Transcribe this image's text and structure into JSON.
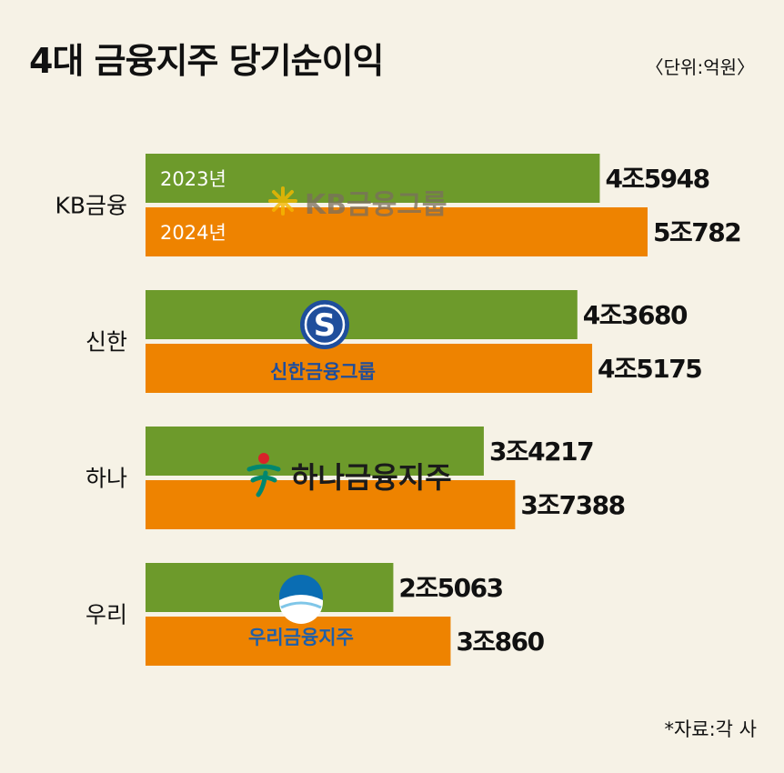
{
  "title": "4대 금융지주 당기순이익",
  "unit": "〈단위:억원〉",
  "source": "*자료:각 사",
  "colors": {
    "series_2023": "#6d9a2b",
    "series_2024": "#ee8300",
    "background": "#f6f2e6"
  },
  "logos": {
    "kb": {
      "text": "KB금융그룹",
      "icon": "kb-star-icon"
    },
    "shinhan": {
      "text": "신한금융그룹",
      "icon": "shinhan-s-emblem-icon"
    },
    "hana": {
      "text": "하나금융지주",
      "icon": "hana-person-icon"
    },
    "woori": {
      "text": "우리금융지주",
      "icon": "woori-sphere-icon"
    }
  },
  "chart_data": {
    "type": "bar",
    "orientation": "horizontal",
    "title": "4대 금융지주 당기순이익",
    "unit": "억원",
    "categories": [
      "KB금융",
      "신한",
      "하나",
      "우리"
    ],
    "series": [
      {
        "name": "2023년",
        "values": [
          45948,
          43680,
          34217,
          25063
        ],
        "labels": [
          "4조5948",
          "4조3680",
          "3조4217",
          "2조5063"
        ]
      },
      {
        "name": "2024년",
        "values": [
          50782,
          45175,
          37388,
          30860
        ],
        "labels": [
          "5조782",
          "4조5175",
          "3조7388",
          "3조860"
        ]
      }
    ],
    "legend": "inside first group bars"
  }
}
